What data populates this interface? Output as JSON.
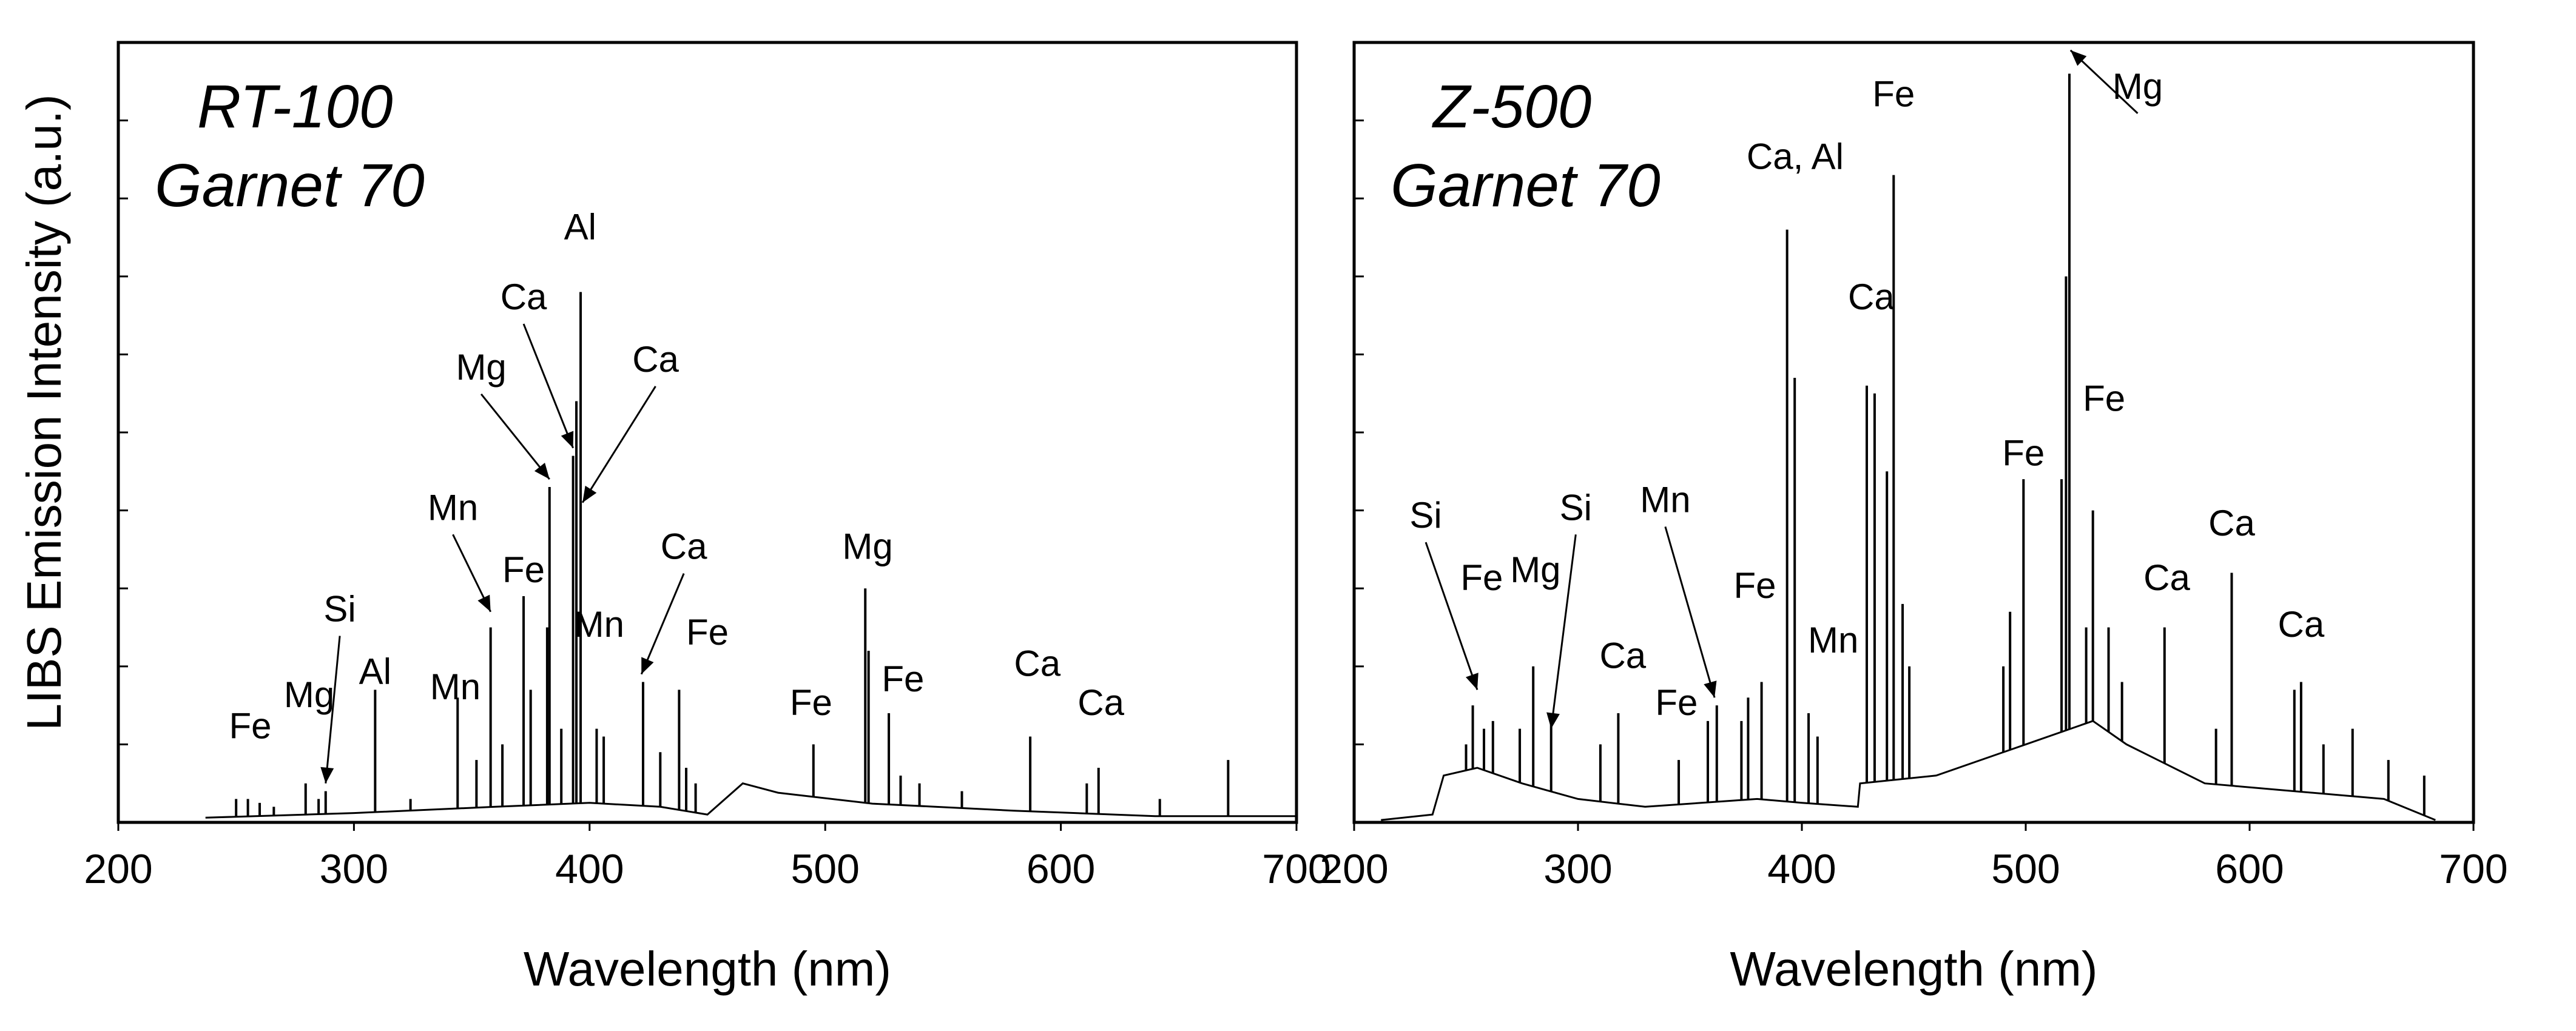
{
  "ylabel": "LIBS Emission Intensity (a.u.)",
  "chart_data": [
    {
      "type": "line",
      "panel": "left",
      "title_line1": "RT-100",
      "title_line2": "Garnet  70",
      "xlabel": "Wavelength (nm)",
      "ylabel": "LIBS Emission Intensity (a.u.)",
      "xlim": [
        200,
        700
      ],
      "ylim": [
        0,
        100
      ],
      "xticks": [
        200,
        300,
        400,
        500,
        600,
        700
      ],
      "xtick_labels": [
        "200",
        "300",
        "400",
        "500",
        "600",
        "700"
      ],
      "grid": false,
      "continuum": [
        [
          237,
          0.6
        ],
        [
          300,
          1.2
        ],
        [
          360,
          2
        ],
        [
          400,
          2.5
        ],
        [
          430,
          2
        ],
        [
          450,
          1
        ],
        [
          465,
          5
        ],
        [
          480,
          3.8
        ],
        [
          520,
          2.4
        ],
        [
          580,
          1.5
        ],
        [
          640,
          0.8
        ],
        [
          700,
          0.8
        ]
      ],
      "peaks": [
        {
          "x": 250,
          "y": 3
        },
        {
          "x": 255,
          "y": 3
        },
        {
          "x": 260,
          "y": 2.5
        },
        {
          "x": 266,
          "y": 2
        },
        {
          "x": 279.5,
          "y": 5
        },
        {
          "x": 285,
          "y": 3
        },
        {
          "x": 288,
          "y": 4
        },
        {
          "x": 309,
          "y": 17
        },
        {
          "x": 324,
          "y": 3
        },
        {
          "x": 344,
          "y": 16
        },
        {
          "x": 352,
          "y": 8
        },
        {
          "x": 358,
          "y": 25
        },
        {
          "x": 363,
          "y": 10
        },
        {
          "x": 372,
          "y": 29
        },
        {
          "x": 375,
          "y": 17
        },
        {
          "x": 382,
          "y": 25
        },
        {
          "x": 383,
          "y": 43
        },
        {
          "x": 388,
          "y": 12
        },
        {
          "x": 393,
          "y": 47
        },
        {
          "x": 394.4,
          "y": 54
        },
        {
          "x": 396.2,
          "y": 68
        },
        {
          "x": 403,
          "y": 12
        },
        {
          "x": 406,
          "y": 11
        },
        {
          "x": 422.7,
          "y": 18
        },
        {
          "x": 430,
          "y": 9
        },
        {
          "x": 438,
          "y": 17
        },
        {
          "x": 441,
          "y": 7
        },
        {
          "x": 445,
          "y": 5
        },
        {
          "x": 495,
          "y": 10
        },
        {
          "x": 517,
          "y": 30
        },
        {
          "x": 518.4,
          "y": 22
        },
        {
          "x": 527,
          "y": 14
        },
        {
          "x": 532,
          "y": 6
        },
        {
          "x": 540,
          "y": 5
        },
        {
          "x": 558,
          "y": 4
        },
        {
          "x": 587,
          "y": 11
        },
        {
          "x": 611,
          "y": 5
        },
        {
          "x": 616,
          "y": 7
        },
        {
          "x": 642,
          "y": 3
        },
        {
          "x": 671,
          "y": 8
        }
      ],
      "annotations": [
        {
          "text": "Fe",
          "x": 256,
          "y": 10
        },
        {
          "text": "Mg",
          "x": 281,
          "y": 14
        },
        {
          "text": "Si",
          "x": 294,
          "y": 25,
          "arrow_to": [
            288,
            5
          ]
        },
        {
          "text": "Al",
          "x": 309,
          "y": 17
        },
        {
          "text": "Mn",
          "x": 343,
          "y": 15
        },
        {
          "text": "Mn",
          "x": 342,
          "y": 38,
          "arrow_to": [
            358,
            27
          ]
        },
        {
          "text": "Fe",
          "x": 372,
          "y": 30
        },
        {
          "text": "Mg",
          "x": 354,
          "y": 56,
          "arrow_to": [
            383,
            44
          ]
        },
        {
          "text": "Ca",
          "x": 372,
          "y": 65,
          "arrow_to": [
            393,
            48
          ]
        },
        {
          "text": "Al",
          "x": 396,
          "y": 74
        },
        {
          "text": "Ca",
          "x": 428,
          "y": 57,
          "arrow_to": [
            397,
            41
          ]
        },
        {
          "text": "Mn",
          "x": 404,
          "y": 23
        },
        {
          "text": "Ca",
          "x": 440,
          "y": 33,
          "arrow_to": [
            422,
            19
          ]
        },
        {
          "text": "Fe",
          "x": 450,
          "y": 22
        },
        {
          "text": "Mg",
          "x": 518,
          "y": 33
        },
        {
          "text": "Fe",
          "x": 494,
          "y": 13
        },
        {
          "text": "Fe",
          "x": 533,
          "y": 16
        },
        {
          "text": "Ca",
          "x": 590,
          "y": 18
        },
        {
          "text": "Ca",
          "x": 617,
          "y": 13
        }
      ]
    },
    {
      "type": "line",
      "panel": "right",
      "title_line1": "Z-500",
      "title_line2": "Garnet  70",
      "xlabel": "Wavelength (nm)",
      "xlim": [
        200,
        700
      ],
      "ylim": [
        0,
        100
      ],
      "xticks": [
        200,
        300,
        400,
        500,
        600,
        700
      ],
      "xtick_labels": [
        "200",
        "300",
        "400",
        "500",
        "600",
        "700"
      ],
      "grid": false,
      "continuum": [
        [
          212,
          0.3
        ],
        [
          235,
          1
        ],
        [
          240,
          6
        ],
        [
          255,
          7
        ],
        [
          275,
          5
        ],
        [
          300,
          3
        ],
        [
          330,
          2
        ],
        [
          380,
          3
        ],
        [
          400,
          2.5
        ],
        [
          425,
          2
        ],
        [
          426,
          5
        ],
        [
          460,
          6
        ],
        [
          500,
          10
        ],
        [
          530,
          13
        ],
        [
          545,
          10
        ],
        [
          580,
          5
        ],
        [
          620,
          4
        ],
        [
          660,
          3
        ],
        [
          683,
          0.3
        ]
      ],
      "peaks": [
        {
          "x": 250,
          "y": 10
        },
        {
          "x": 253,
          "y": 15
        },
        {
          "x": 258,
          "y": 12
        },
        {
          "x": 262,
          "y": 13
        },
        {
          "x": 274,
          "y": 12
        },
        {
          "x": 280,
          "y": 20
        },
        {
          "x": 288,
          "y": 13
        },
        {
          "x": 310,
          "y": 10
        },
        {
          "x": 318,
          "y": 14
        },
        {
          "x": 345,
          "y": 8
        },
        {
          "x": 358,
          "y": 13
        },
        {
          "x": 362,
          "y": 15
        },
        {
          "x": 373,
          "y": 13
        },
        {
          "x": 376,
          "y": 16
        },
        {
          "x": 382,
          "y": 18
        },
        {
          "x": 393.4,
          "y": 76
        },
        {
          "x": 396.8,
          "y": 57
        },
        {
          "x": 403,
          "y": 14
        },
        {
          "x": 407,
          "y": 11
        },
        {
          "x": 429,
          "y": 56
        },
        {
          "x": 432.5,
          "y": 55
        },
        {
          "x": 438,
          "y": 45
        },
        {
          "x": 441,
          "y": 83
        },
        {
          "x": 445,
          "y": 28
        },
        {
          "x": 448,
          "y": 20
        },
        {
          "x": 490,
          "y": 20
        },
        {
          "x": 493,
          "y": 27
        },
        {
          "x": 499,
          "y": 44
        },
        {
          "x": 516,
          "y": 44
        },
        {
          "x": 518,
          "y": 70
        },
        {
          "x": 519.5,
          "y": 96
        },
        {
          "x": 527,
          "y": 25
        },
        {
          "x": 530,
          "y": 40
        },
        {
          "x": 537,
          "y": 25
        },
        {
          "x": 543,
          "y": 18
        },
        {
          "x": 562,
          "y": 25
        },
        {
          "x": 585,
          "y": 12
        },
        {
          "x": 592,
          "y": 32
        },
        {
          "x": 620,
          "y": 17
        },
        {
          "x": 623,
          "y": 18
        },
        {
          "x": 633,
          "y": 10
        },
        {
          "x": 646,
          "y": 12
        },
        {
          "x": 662,
          "y": 8
        },
        {
          "x": 678,
          "y": 6
        }
      ],
      "annotations": [
        {
          "text": "Si",
          "x": 232,
          "y": 37,
          "arrow_to": [
            255,
            17
          ]
        },
        {
          "text": "Fe",
          "x": 257,
          "y": 29
        },
        {
          "text": "Mg",
          "x": 281,
          "y": 30
        },
        {
          "text": "Si",
          "x": 299,
          "y": 38,
          "arrow_to": [
            288,
            12
          ]
        },
        {
          "text": "Mn",
          "x": 339,
          "y": 39,
          "arrow_to": [
            361,
            16
          ]
        },
        {
          "text": "Ca",
          "x": 320,
          "y": 19
        },
        {
          "text": "Fe",
          "x": 344,
          "y": 13
        },
        {
          "text": "Fe",
          "x": 379,
          "y": 28
        },
        {
          "text": "Mn",
          "x": 414,
          "y": 21
        },
        {
          "text": "Ca, Al",
          "x": 397,
          "y": 83
        },
        {
          "text": "Ca",
          "x": 431,
          "y": 65
        },
        {
          "text": "Fe",
          "x": 441,
          "y": 91
        },
        {
          "text": "Mg",
          "x": 550,
          "y": 92,
          "arrow_to": [
            520,
            99
          ]
        },
        {
          "text": "Fe",
          "x": 499,
          "y": 45
        },
        {
          "text": "Fe",
          "x": 535,
          "y": 52
        },
        {
          "text": "Ca",
          "x": 563,
          "y": 29
        },
        {
          "text": "Ca",
          "x": 592,
          "y": 36
        },
        {
          "text": "Ca",
          "x": 623,
          "y": 23
        }
      ]
    }
  ]
}
